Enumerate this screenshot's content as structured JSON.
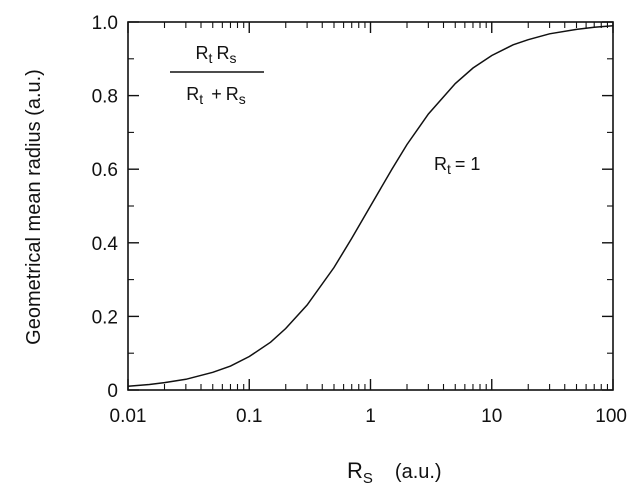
{
  "chart_data": {
    "type": "line",
    "xlabel": "R",
    "xlabel_sub": "S",
    "xlabel_unit": "(a.u.)",
    "ylabel": "Geometrical mean radius (a.u.)",
    "x_scale": "log",
    "xlim": [
      0.01,
      100
    ],
    "ylim": [
      0,
      1.0
    ],
    "x_ticks": [
      0.01,
      0.1,
      1,
      10,
      100
    ],
    "x_tick_labels": [
      "0.01",
      "0.1",
      "1",
      "10",
      "100"
    ],
    "y_ticks": [
      0,
      0.2,
      0.4,
      0.6,
      0.8,
      1.0
    ],
    "y_tick_labels": [
      "0",
      "0.2",
      "0.4",
      "0.6",
      "0.8",
      "1.0"
    ],
    "grid": false,
    "series": [
      {
        "x": [
          0.01,
          0.015,
          0.02,
          0.03,
          0.05,
          0.07,
          0.1,
          0.15,
          0.2,
          0.3,
          0.5,
          0.7,
          1,
          1.5,
          2,
          3,
          5,
          7,
          10,
          15,
          20,
          30,
          50,
          70,
          100
        ],
        "y": [
          0.01,
          0.015,
          0.02,
          0.029,
          0.048,
          0.065,
          0.091,
          0.13,
          0.167,
          0.231,
          0.333,
          0.412,
          0.5,
          0.6,
          0.667,
          0.75,
          0.833,
          0.875,
          0.909,
          0.938,
          0.952,
          0.968,
          0.98,
          0.986,
          0.99
        ]
      }
    ],
    "formula": {
      "num_r": "R",
      "num_r_sub": "t",
      "num_s": "R",
      "num_s_sub": "s",
      "den_r": "R",
      "den_r_sub": "t",
      "den_plus": "+",
      "den_s": "R",
      "den_s_sub": "s"
    },
    "annotation": {
      "r": "R",
      "sub": "t",
      "rest": "= 1"
    }
  }
}
